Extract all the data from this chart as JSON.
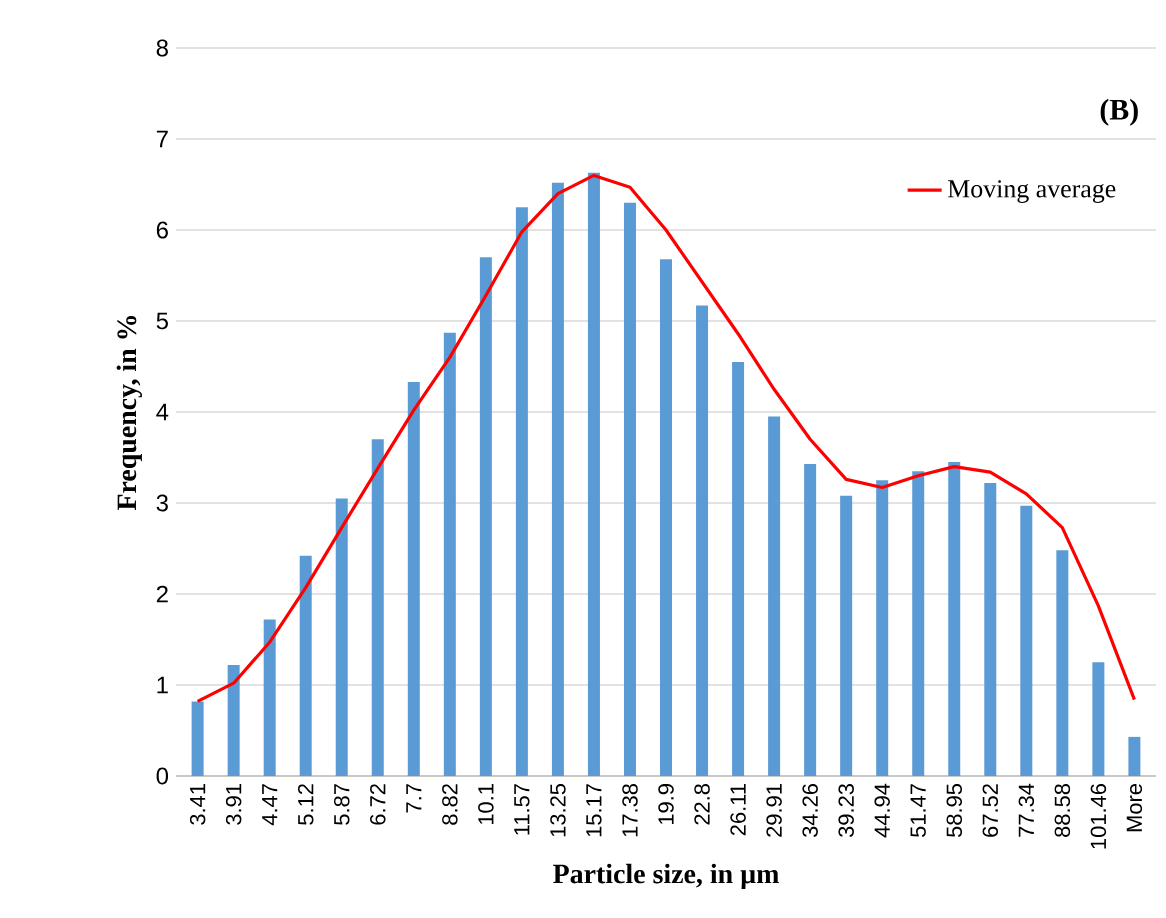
{
  "chart_data": {
    "type": "bar",
    "xlabel": "Particle size, in µm",
    "ylabel": "Frequency, in %",
    "annotations": [
      "(B)"
    ],
    "categories": [
      "3.41",
      "3.91",
      "4.47",
      "5.12",
      "5.87",
      "6.72",
      "7.7",
      "8.82",
      "10.1",
      "11.57",
      "13.25",
      "15.17",
      "17.38",
      "19.9",
      "22.8",
      "26.11",
      "29.91",
      "34.26",
      "39.23",
      "44.94",
      "51.47",
      "58.95",
      "67.52",
      "77.34",
      "88.58",
      "101.46",
      "More"
    ],
    "series": [
      {
        "color": "#5b9bd5",
        "values": [
          0.82,
          1.22,
          1.72,
          2.42,
          3.05,
          3.7,
          4.33,
          4.87,
          5.7,
          6.25,
          6.52,
          6.63,
          6.3,
          5.68,
          5.17,
          4.55,
          3.95,
          3.43,
          3.08,
          3.25,
          3.35,
          3.45,
          3.22,
          2.97,
          2.48,
          1.25,
          0.43
        ]
      },
      {
        "type": "line",
        "name": "Moving average",
        "color": "#ff0000",
        "values": [
          0.82,
          1.02,
          1.47,
          2.07,
          2.73,
          3.38,
          4.02,
          4.6,
          5.28,
          5.98,
          6.4,
          6.6,
          6.47,
          6.0,
          5.43,
          4.86,
          4.25,
          3.7,
          3.26,
          3.17,
          3.3,
          3.4,
          3.34,
          3.1,
          2.73,
          1.87,
          0.84
        ]
      }
    ],
    "ylim": [
      0,
      8
    ],
    "yticks": [
      0,
      1,
      2,
      3,
      4,
      5,
      6,
      7,
      8
    ],
    "grid": "y",
    "legend": "top right",
    "marker": "none"
  }
}
